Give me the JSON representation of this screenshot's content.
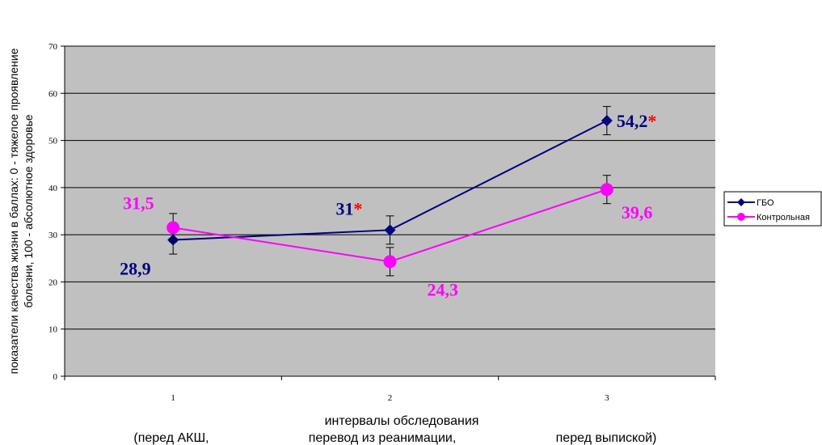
{
  "chart_data": {
    "type": "line",
    "categories": [
      "1",
      "2",
      "3"
    ],
    "ylim": [
      0,
      70
    ],
    "yticks": [
      0,
      10,
      20,
      30,
      40,
      50,
      60,
      70
    ],
    "grid": true,
    "ylabel_line1": "показатели качества жизни в баллах: 0 - тяжелое проявление",
    "ylabel_line2": "болезни, 100 - абсолютное здоровье",
    "xlabel": "интервалы обследования",
    "xsub": [
      "(перед АКШ,",
      "перевод из реанимации,",
      "перед выпиской)"
    ],
    "legend_position": "right",
    "series": [
      {
        "name": "ГБО",
        "color": "#000080",
        "marker": "diamond",
        "values": [
          28.9,
          31.0,
          54.2
        ],
        "errors": [
          3.0,
          3.0,
          3.0
        ],
        "labels": [
          "28,9",
          "31",
          "54,2"
        ],
        "stars": [
          "",
          "*",
          "*"
        ]
      },
      {
        "name": "Контрольная",
        "color": "#FF00FF",
        "marker": "circle",
        "values": [
          31.5,
          24.3,
          39.6
        ],
        "errors": [
          3.0,
          3.0,
          3.0
        ],
        "labels": [
          "31,5",
          "24,3",
          "39,6"
        ],
        "stars": [
          "",
          "",
          ""
        ]
      }
    ],
    "star_color": "#FF0000"
  }
}
